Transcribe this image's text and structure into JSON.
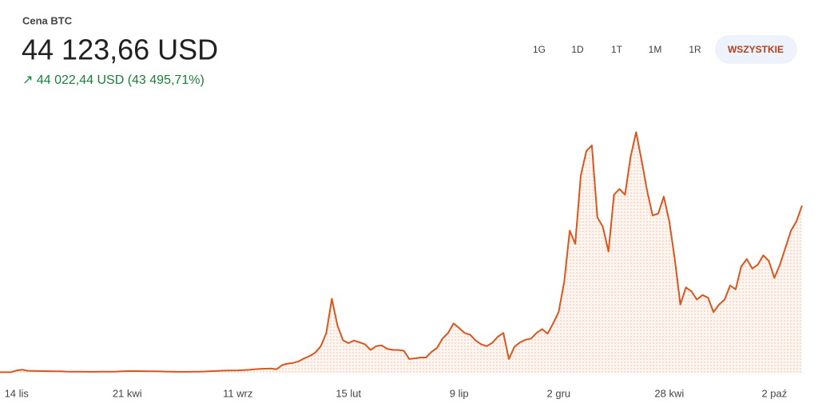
{
  "header": {
    "label": "Cena BTC",
    "price": "44 123,66 USD",
    "change": "↗ 44 022,44 USD (43 495,71%)"
  },
  "range_buttons": [
    "1G",
    "1D",
    "1T",
    "1M",
    "1R",
    "WSZYSTKIE"
  ],
  "chart_data": {
    "type": "line",
    "color": "#d9561f",
    "categories": [
      null,
      null,
      null,
      "14 lis",
      null,
      null,
      null,
      null,
      null,
      null,
      null,
      null,
      null,
      null,
      null,
      null,
      null,
      null,
      null,
      null,
      null,
      null,
      null,
      "21 kwi",
      null,
      null,
      null,
      null,
      null,
      null,
      null,
      null,
      null,
      null,
      null,
      null,
      null,
      null,
      null,
      null,
      null,
      null,
      null,
      "11 wrz",
      null,
      null,
      null,
      null,
      null,
      null,
      null,
      null,
      null,
      null,
      null,
      null,
      null,
      null,
      null,
      null,
      null,
      null,
      null,
      "15 lut",
      null,
      null,
      null,
      null,
      null,
      null,
      null,
      null,
      null,
      null,
      null,
      null,
      null,
      null,
      null,
      null,
      null,
      null,
      null,
      "9 lip",
      null,
      null,
      null,
      null,
      null,
      null,
      null,
      null,
      null,
      null,
      null,
      null,
      null,
      null,
      null,
      null,
      null,
      "2 gru",
      null,
      null,
      null,
      null,
      null,
      null,
      null,
      null,
      null,
      null,
      null,
      null,
      null,
      null,
      null,
      null,
      null,
      null,
      null,
      "28 kwi",
      null,
      null,
      null,
      null,
      null,
      null,
      null,
      null,
      null,
      null,
      null,
      null,
      null,
      null,
      null,
      null,
      null,
      null,
      "2 paź",
      null,
      null,
      null,
      null,
      null
    ],
    "values": [
      120,
      120,
      130,
      600,
      800,
      500,
      480,
      450,
      420,
      400,
      380,
      350,
      300,
      280,
      260,
      250,
      240,
      240,
      250,
      260,
      280,
      300,
      350,
      430,
      450,
      420,
      400,
      380,
      360,
      330,
      300,
      260,
      240,
      230,
      240,
      250,
      280,
      320,
      400,
      450,
      520,
      580,
      600,
      620,
      680,
      750,
      900,
      1000,
      1050,
      1100,
      900,
      2000,
      2400,
      2600,
      3000,
      3800,
      4400,
      5300,
      7000,
      10500,
      19500,
      12500,
      8600,
      7800,
      8500,
      8000,
      7500,
      6000,
      7000,
      7200,
      6300,
      6000,
      6000,
      5800,
      3600,
      3800,
      4000,
      4000,
      5500,
      6500,
      9000,
      10500,
      13000,
      11800,
      10500,
      10000,
      8500,
      7500,
      7000,
      7900,
      9500,
      10500,
      3600,
      6800,
      8000,
      8700,
      9000,
      10500,
      11500,
      10300,
      13000,
      16000,
      24000,
      37500,
      34000,
      52000,
      58500,
      60000,
      41000,
      38500,
      32000,
      47000,
      48500,
      47000,
      57000,
      63500,
      56000,
      48000,
      41500,
      42000,
      46500,
      40000,
      30000,
      18000,
      22500,
      21500,
      19300,
      20500,
      19800,
      16000,
      18000,
      19300,
      23000,
      22000,
      28000,
      30000,
      27500,
      28500,
      31000,
      29500,
      25000,
      28500,
      33000,
      37500,
      40000,
      44124
    ],
    "ylim": [
      0,
      71000
    ]
  }
}
